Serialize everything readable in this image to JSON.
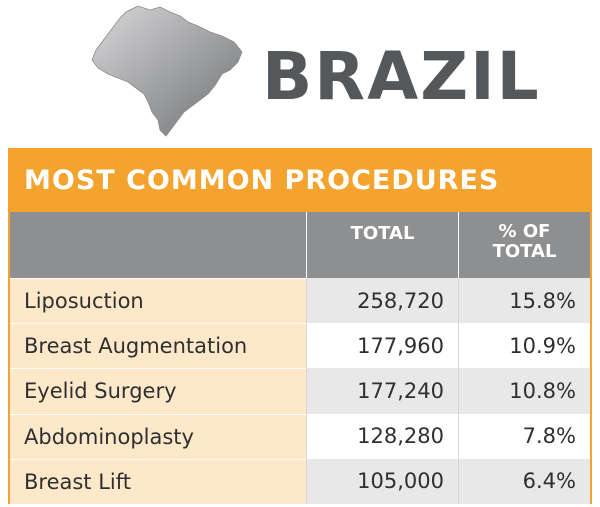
{
  "header": {
    "country": "BRAZIL",
    "map_icon": "brazil-map-silhouette"
  },
  "colors": {
    "accent": "#f3a32e",
    "header_gray": "#8e8f91",
    "row_tint": "#fde8c9",
    "title_text": "#55585a"
  },
  "chart_data": {
    "type": "table",
    "title": "MOST COMMON PROCEDURES",
    "columns": [
      "",
      "TOTAL",
      "% OF TOTAL"
    ],
    "header_total": "TOTAL",
    "header_pct_line1": "% OF",
    "header_pct_line2": "TOTAL",
    "rows": [
      {
        "procedure": "Liposuction",
        "total": "258,720",
        "pct": "15.8%"
      },
      {
        "procedure": "Breast Augmentation",
        "total": "177,960",
        "pct": "10.9%"
      },
      {
        "procedure": "Eyelid Surgery",
        "total": "177,240",
        "pct": "10.8%"
      },
      {
        "procedure": "Abdominoplasty",
        "total": "128,280",
        "pct": "7.8%"
      },
      {
        "procedure": "Breast Lift",
        "total": "105,000",
        "pct": "6.4%"
      }
    ]
  }
}
